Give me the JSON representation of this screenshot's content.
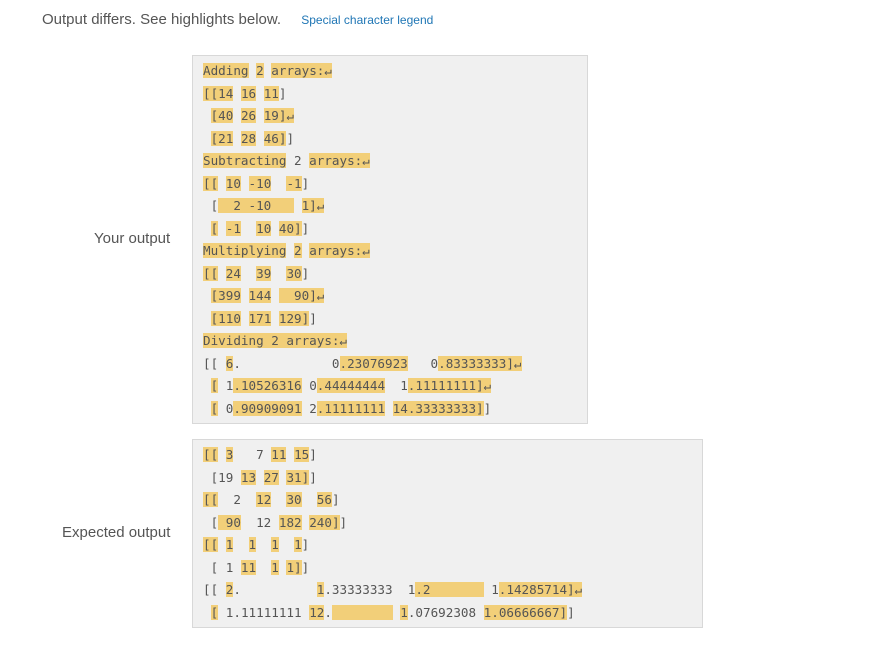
{
  "header": {
    "status_text": "Output differs. See highlights below.",
    "legend_link": "Special character legend"
  },
  "your_output": {
    "label": "Your output",
    "lines": [
      [
        [
          "Adding",
          1
        ],
        [
          " ",
          0
        ],
        [
          "2",
          1
        ],
        [
          " ",
          0
        ],
        [
          "arrays:↵",
          1
        ]
      ],
      [
        [
          "[[14",
          1
        ],
        [
          " ",
          0
        ],
        [
          "16",
          1
        ],
        [
          " ",
          0
        ],
        [
          "11",
          1
        ],
        [
          "]",
          0
        ]
      ],
      [
        [
          " ",
          0
        ],
        [
          "[40",
          1
        ],
        [
          " ",
          0
        ],
        [
          "26",
          1
        ],
        [
          " ",
          0
        ],
        [
          "19]↵",
          1
        ]
      ],
      [
        [
          " ",
          0
        ],
        [
          "[21",
          1
        ],
        [
          " ",
          0
        ],
        [
          "28",
          1
        ],
        [
          " ",
          0
        ],
        [
          "46]",
          1
        ],
        [
          "]",
          0
        ]
      ],
      [
        [
          "Subtracting",
          1
        ],
        [
          " 2 ",
          0
        ],
        [
          "arrays:↵",
          1
        ]
      ],
      [
        [
          "[[",
          1
        ],
        [
          " ",
          0
        ],
        [
          "10",
          1
        ],
        [
          " ",
          0
        ],
        [
          "-10",
          1
        ],
        [
          "  ",
          0
        ],
        [
          "-1",
          1
        ],
        [
          "]",
          0
        ]
      ],
      [
        [
          " [",
          0
        ],
        [
          "  2 -10   ",
          1
        ],
        [
          " ",
          0
        ],
        [
          "1]↵",
          1
        ]
      ],
      [
        [
          " ",
          0
        ],
        [
          "[",
          1
        ],
        [
          " ",
          0
        ],
        [
          "-1",
          1
        ],
        [
          "  ",
          0
        ],
        [
          "10",
          1
        ],
        [
          " ",
          0
        ],
        [
          "40]",
          1
        ],
        [
          "]",
          0
        ]
      ],
      [
        [
          "Multiplying",
          1
        ],
        [
          " ",
          0
        ],
        [
          "2",
          1
        ],
        [
          " ",
          0
        ],
        [
          "arrays:↵",
          1
        ]
      ],
      [
        [
          "[[",
          1
        ],
        [
          " ",
          0
        ],
        [
          "24",
          1
        ],
        [
          "  ",
          0
        ],
        [
          "39",
          1
        ],
        [
          "  ",
          0
        ],
        [
          "30",
          1
        ],
        [
          "]",
          0
        ]
      ],
      [
        [
          " ",
          0
        ],
        [
          "[399",
          1
        ],
        [
          " ",
          0
        ],
        [
          "144",
          1
        ],
        [
          " ",
          0
        ],
        [
          "  90]↵",
          1
        ]
      ],
      [
        [
          " ",
          0
        ],
        [
          "[110",
          1
        ],
        [
          " ",
          0
        ],
        [
          "171",
          1
        ],
        [
          " ",
          0
        ],
        [
          "129]",
          1
        ],
        [
          "]",
          0
        ]
      ],
      [
        [
          "Dividing 2 arrays:↵",
          1
        ]
      ],
      [
        [
          "[[ ",
          0
        ],
        [
          "6",
          1
        ],
        [
          ".            ",
          0
        ],
        [
          "0",
          0
        ],
        [
          ".23076923",
          1
        ],
        [
          "  ",
          0
        ],
        [
          " 0",
          0
        ],
        [
          ".83333333]↵",
          1
        ]
      ],
      [
        [
          " ",
          0
        ],
        [
          "[",
          1
        ],
        [
          " 1",
          0
        ],
        [
          ".10526316",
          1
        ],
        [
          " ",
          0
        ],
        [
          "0",
          0
        ],
        [
          ".44444444",
          1
        ],
        [
          "  1",
          0
        ],
        [
          ".11111111]↵",
          1
        ]
      ],
      [
        [
          " ",
          0
        ],
        [
          "[",
          1
        ],
        [
          " 0",
          0
        ],
        [
          ".90909091",
          1
        ],
        [
          " ",
          0
        ],
        [
          "2",
          0
        ],
        [
          ".11111111",
          1
        ],
        [
          " ",
          0
        ],
        [
          "14",
          1
        ],
        [
          ".33333333]",
          1
        ],
        [
          "]",
          0
        ]
      ]
    ]
  },
  "expected_output": {
    "label": "Expected output",
    "lines": [
      [
        [
          "[[",
          1
        ],
        [
          " ",
          0
        ],
        [
          "3",
          1
        ],
        [
          "  ",
          0
        ],
        [
          " 7",
          0
        ],
        [
          " ",
          0
        ],
        [
          "11",
          1
        ],
        [
          " ",
          0
        ],
        [
          "15",
          1
        ],
        [
          "]",
          0
        ]
      ],
      [
        [
          " [19 ",
          0
        ],
        [
          "13",
          1
        ],
        [
          " ",
          0
        ],
        [
          "27",
          1
        ],
        [
          " ",
          0
        ],
        [
          "31]",
          1
        ],
        [
          "]",
          0
        ]
      ],
      [
        [
          "[[",
          1
        ],
        [
          "  ",
          0
        ],
        [
          "2",
          0
        ],
        [
          "  ",
          0
        ],
        [
          "12",
          1
        ],
        [
          "  ",
          0
        ],
        [
          "30",
          1
        ],
        [
          "  ",
          0
        ],
        [
          "56",
          1
        ],
        [
          "]",
          0
        ]
      ],
      [
        [
          " [",
          0
        ],
        [
          " 90",
          1
        ],
        [
          "  ",
          0
        ],
        [
          "12",
          0
        ],
        [
          " ",
          0
        ],
        [
          "182",
          1
        ],
        [
          " ",
          0
        ],
        [
          "240]",
          1
        ],
        [
          "]",
          0
        ]
      ],
      [
        [
          "[[",
          1
        ],
        [
          " ",
          0
        ],
        [
          "1",
          1
        ],
        [
          "  ",
          0
        ],
        [
          "1",
          1
        ],
        [
          "  ",
          0
        ],
        [
          "1",
          1
        ],
        [
          "  ",
          0
        ],
        [
          "1",
          1
        ],
        [
          "]",
          0
        ]
      ],
      [
        [
          " [ 1 ",
          0
        ],
        [
          "11",
          1
        ],
        [
          "  ",
          0
        ],
        [
          "1",
          1
        ],
        [
          " ",
          0
        ],
        [
          "1]",
          1
        ],
        [
          "]",
          0
        ]
      ],
      [
        [
          "[[ ",
          0
        ],
        [
          "2",
          1
        ],
        [
          ".          ",
          0
        ],
        [
          "1",
          1
        ],
        [
          ".33333333  1",
          0
        ],
        [
          ".2       ",
          1
        ],
        [
          " ",
          0
        ],
        [
          "1",
          0
        ],
        [
          ".142857",
          1
        ],
        [
          "14]↵",
          1
        ]
      ],
      [
        [
          " ",
          0
        ],
        [
          "[",
          1
        ],
        [
          " 1",
          0
        ],
        [
          ".11111111",
          0
        ],
        [
          " ",
          0
        ],
        [
          "12",
          1
        ],
        [
          ".",
          0
        ],
        [
          "        ",
          1
        ],
        [
          " ",
          0
        ],
        [
          "1",
          1
        ],
        [
          ".07692308",
          0
        ],
        [
          " ",
          0
        ],
        [
          "1",
          1
        ],
        [
          ".06666667]",
          1
        ],
        [
          "]",
          0
        ]
      ]
    ]
  }
}
